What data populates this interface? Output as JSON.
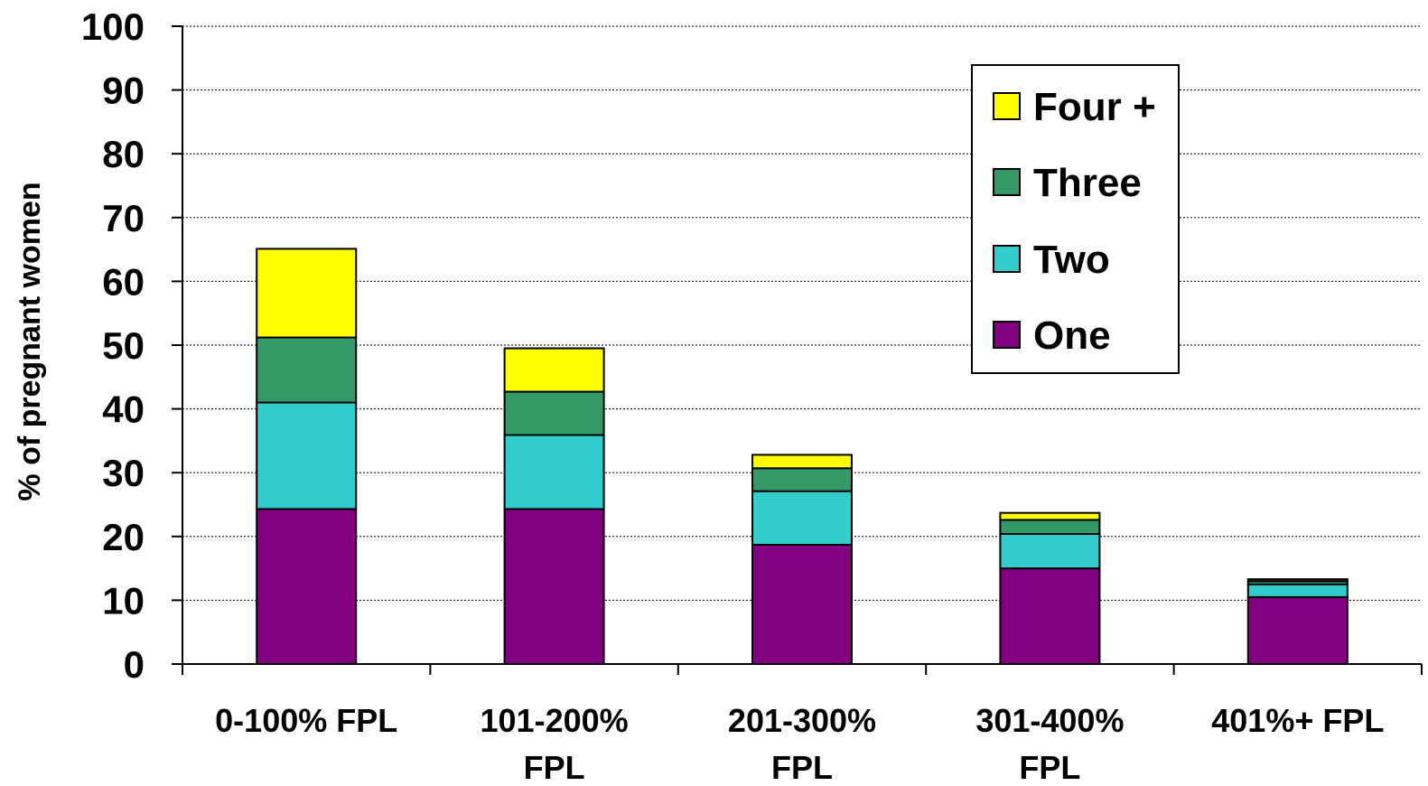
{
  "chart_data": {
    "type": "bar",
    "stacked": true,
    "ylabel": "% of pregnant women",
    "xlabel": "",
    "ylim": [
      0,
      100
    ],
    "yticks": [
      0,
      10,
      20,
      30,
      40,
      50,
      60,
      70,
      80,
      90,
      100
    ],
    "grid": true,
    "legend_position": "top-right",
    "categories": [
      [
        "0-100% FPL"
      ],
      [
        "101-200%",
        "FPL"
      ],
      [
        "201-300%",
        "FPL"
      ],
      [
        "301-400%",
        "FPL"
      ],
      [
        "401%+ FPL"
      ]
    ],
    "series": [
      {
        "name": "One",
        "color": "#800080",
        "values": [
          24.3,
          24.3,
          18.7,
          15.0,
          10.5
        ]
      },
      {
        "name": "Two",
        "color": "#33CCCC",
        "values": [
          16.7,
          11.6,
          8.4,
          5.4,
          2.0
        ]
      },
      {
        "name": "Three",
        "color": "#339966",
        "values": [
          10.2,
          6.8,
          3.6,
          2.2,
          0.5
        ]
      },
      {
        "name": "Four +",
        "color": "#FFFF00",
        "values": [
          13.9,
          6.8,
          2.1,
          1.1,
          0.3
        ]
      }
    ],
    "legend_order": [
      "Four +",
      "Three",
      "Two",
      "One"
    ]
  }
}
